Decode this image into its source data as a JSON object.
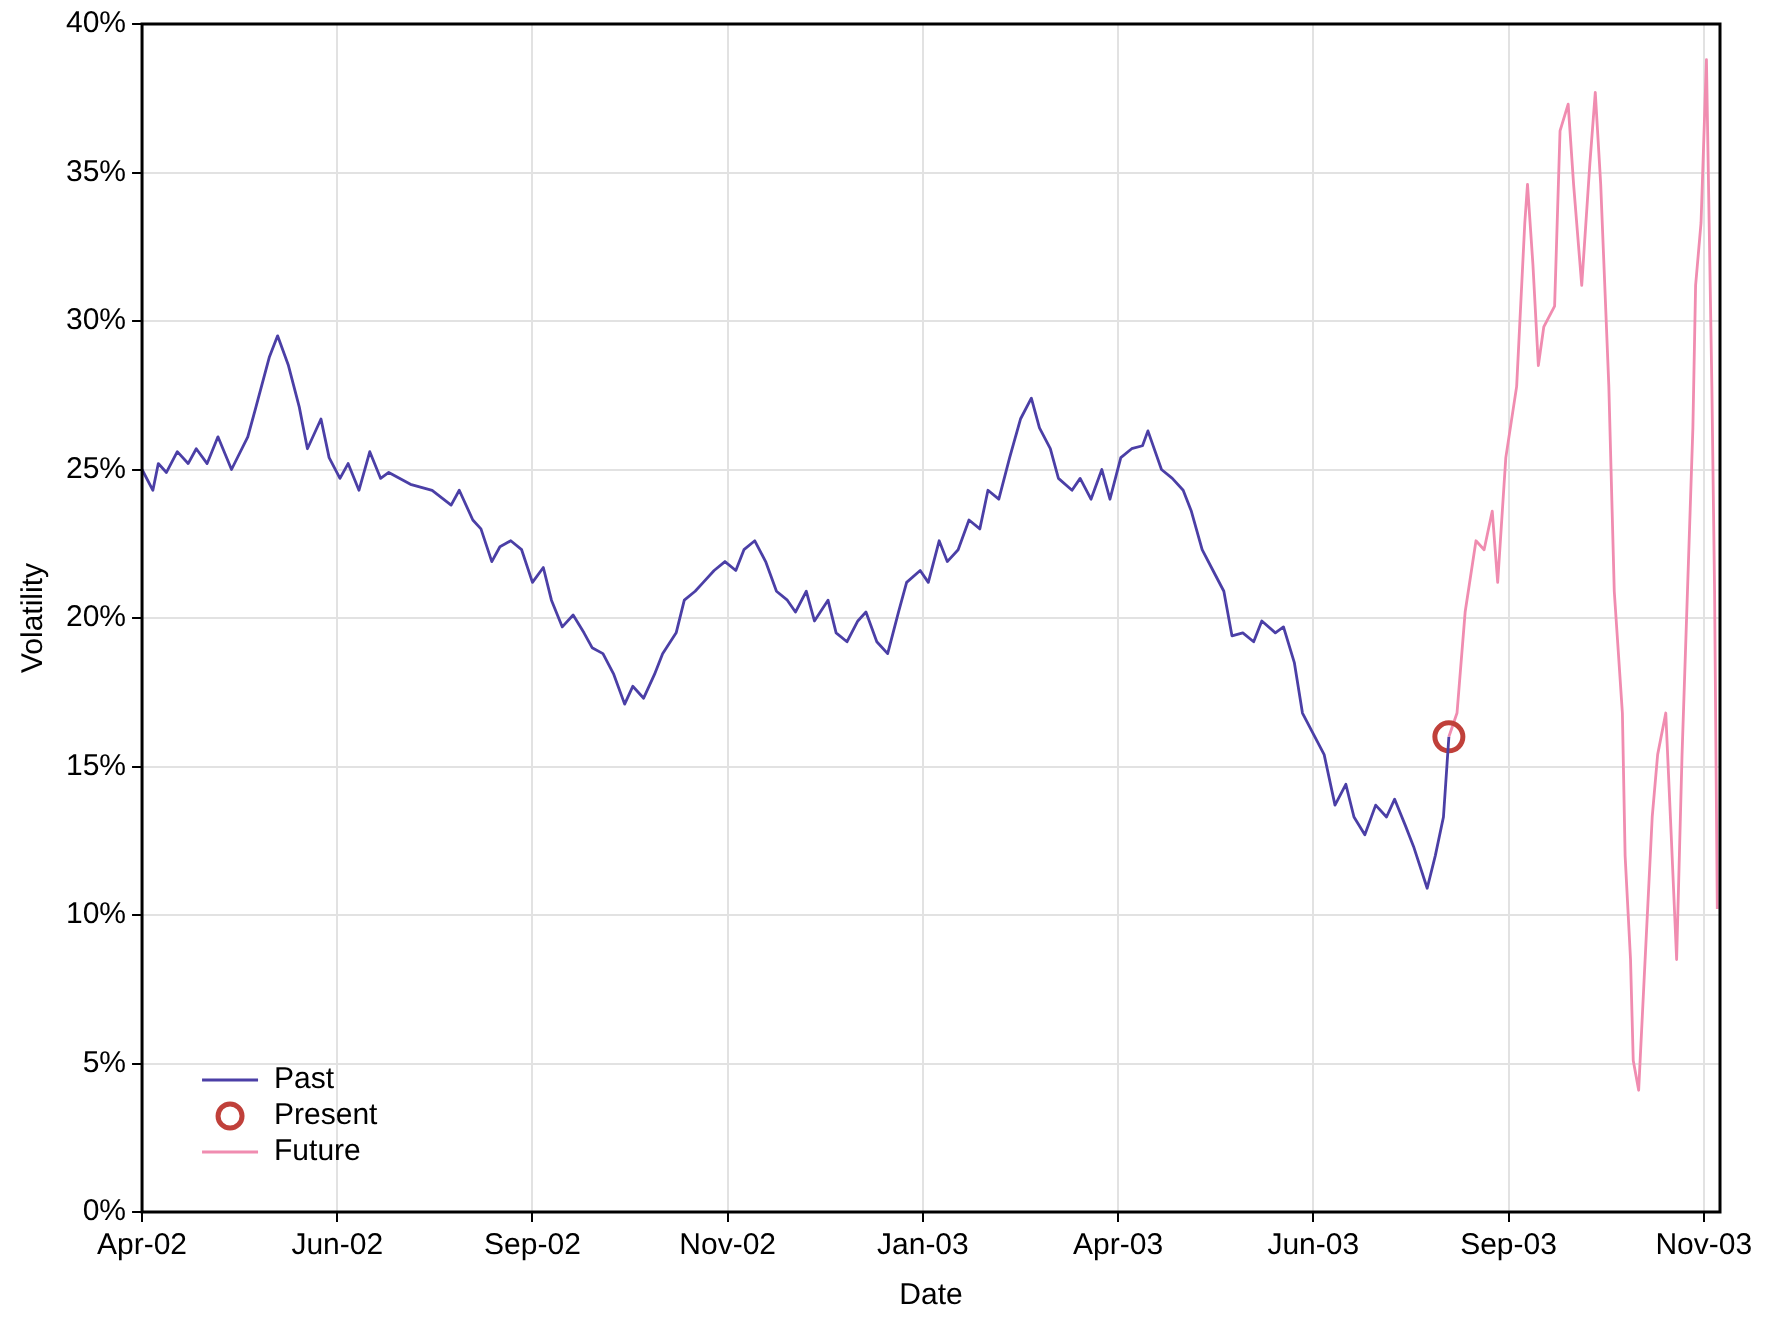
{
  "chart_data": {
    "type": "line",
    "xlabel": "Date",
    "ylabel": "Volatility",
    "xlim": [
      "2002-04-15",
      "2003-11-18"
    ],
    "xticks": [
      {
        "value": "2002-04-15",
        "label": "Apr-02"
      },
      {
        "value": "2002-06-26",
        "label": "Jun-02"
      },
      {
        "value": "2002-09-06",
        "label": "Sep-02"
      },
      {
        "value": "2002-11-17",
        "label": "Nov-02"
      },
      {
        "value": "2003-01-28",
        "label": "Jan-03"
      },
      {
        "value": "2003-04-10",
        "label": "Apr-03"
      },
      {
        "value": "2003-06-21",
        "label": "Jun-03"
      },
      {
        "value": "2003-09-01",
        "label": "Sep-03"
      },
      {
        "value": "2003-11-12",
        "label": "Nov-03"
      }
    ],
    "ylim": [
      0,
      40
    ],
    "yticks": [
      {
        "value": 0,
        "label": "0%"
      },
      {
        "value": 5,
        "label": "5%"
      },
      {
        "value": 10,
        "label": "10%"
      },
      {
        "value": 15,
        "label": "15%"
      },
      {
        "value": 20,
        "label": "20%"
      },
      {
        "value": 25,
        "label": "25%"
      },
      {
        "value": 30,
        "label": "30%"
      },
      {
        "value": 35,
        "label": "35%"
      },
      {
        "value": 40,
        "label": "40%"
      }
    ],
    "grid": true,
    "legend": "bottom left",
    "series": [
      {
        "name": "Past",
        "color": "#4b3fa6",
        "x": [
          "2002-04-15",
          "2002-04-19",
          "2002-04-21",
          "2002-04-24",
          "2002-04-28",
          "2002-05-02",
          "2002-05-05",
          "2002-05-09",
          "2002-05-13",
          "2002-05-18",
          "2002-05-24",
          "2002-05-27",
          "2002-06-01",
          "2002-06-04",
          "2002-06-08",
          "2002-06-12",
          "2002-06-15",
          "2002-06-20",
          "2002-06-23",
          "2002-06-27",
          "2002-06-30",
          "2002-07-04",
          "2002-07-08",
          "2002-07-12",
          "2002-07-15",
          "2002-07-23",
          "2002-07-31",
          "2002-08-07",
          "2002-08-10",
          "2002-08-15",
          "2002-08-18",
          "2002-08-22",
          "2002-08-25",
          "2002-08-29",
          "2002-09-02",
          "2002-09-06",
          "2002-09-10",
          "2002-09-13",
          "2002-09-17",
          "2002-09-21",
          "2002-09-25",
          "2002-09-28",
          "2002-10-02",
          "2002-10-06",
          "2002-10-10",
          "2002-10-13",
          "2002-10-17",
          "2002-10-21",
          "2002-10-24",
          "2002-10-29",
          "2002-11-01",
          "2002-11-05",
          "2002-11-08",
          "2002-11-12",
          "2002-11-16",
          "2002-11-20",
          "2002-11-23",
          "2002-11-27",
          "2002-12-01",
          "2002-12-05",
          "2002-12-09",
          "2002-12-12",
          "2002-12-16",
          "2002-12-19",
          "2002-12-24",
          "2002-12-27",
          "2002-12-31",
          "2003-01-04",
          "2003-01-07",
          "2003-01-11",
          "2003-01-15",
          "2003-01-19",
          "2003-01-22",
          "2003-01-27",
          "2003-01-30",
          "2003-02-03",
          "2003-02-06",
          "2003-02-10",
          "2003-02-14",
          "2003-02-18",
          "2003-02-21",
          "2003-02-25",
          "2003-03-01",
          "2003-03-05",
          "2003-03-09",
          "2003-03-12",
          "2003-03-16",
          "2003-03-19",
          "2003-03-24",
          "2003-03-27",
          "2003-03-31",
          "2003-04-04",
          "2003-04-07",
          "2003-04-11",
          "2003-04-15",
          "2003-04-19",
          "2003-04-21",
          "2003-04-26",
          "2003-04-30",
          "2003-05-04",
          "2003-05-07",
          "2003-05-11",
          "2003-05-15",
          "2003-05-19",
          "2003-05-22",
          "2003-05-26",
          "2003-05-30",
          "2003-06-02",
          "2003-06-07",
          "2003-06-10",
          "2003-06-14",
          "2003-06-17",
          "2003-06-21",
          "2003-06-25",
          "2003-06-29",
          "2003-07-03",
          "2003-07-06",
          "2003-07-10",
          "2003-07-14",
          "2003-07-18",
          "2003-07-21",
          "2003-07-25",
          "2003-07-28",
          "2003-08-02",
          "2003-08-05",
          "2003-08-08",
          "2003-08-10"
        ],
        "values": [
          25.0,
          24.3,
          25.2,
          24.9,
          25.6,
          25.2,
          25.7,
          25.2,
          26.1,
          25.0,
          26.1,
          27.1,
          28.8,
          29.5,
          28.5,
          27.1,
          25.7,
          26.7,
          25.4,
          24.7,
          25.2,
          24.3,
          25.6,
          24.7,
          24.9,
          24.5,
          24.3,
          23.8,
          24.3,
          23.3,
          23.0,
          21.9,
          22.4,
          22.6,
          22.3,
          21.2,
          21.7,
          20.6,
          19.7,
          20.1,
          19.5,
          19.0,
          18.8,
          18.1,
          17.1,
          17.7,
          17.3,
          18.1,
          18.8,
          19.5,
          20.6,
          20.9,
          21.2,
          21.6,
          21.9,
          21.6,
          22.3,
          22.6,
          21.9,
          20.9,
          20.6,
          20.2,
          20.9,
          19.9,
          20.6,
          19.5,
          19.2,
          19.9,
          20.2,
          19.2,
          18.8,
          20.2,
          21.2,
          21.6,
          21.2,
          22.6,
          21.9,
          22.3,
          23.3,
          23.0,
          24.3,
          24.0,
          25.4,
          26.7,
          27.4,
          26.4,
          25.7,
          24.7,
          24.3,
          24.7,
          24.0,
          25.0,
          24.0,
          25.4,
          25.7,
          25.8,
          26.3,
          25.0,
          24.7,
          24.3,
          23.6,
          22.3,
          21.6,
          20.9,
          19.4,
          19.5,
          19.2,
          19.9,
          19.5,
          19.7,
          18.5,
          16.8,
          16.1,
          15.4,
          13.7,
          14.4,
          13.3,
          12.7,
          13.7,
          13.3,
          13.9,
          13.0,
          12.3,
          10.9,
          12.0,
          13.3,
          16.0
        ]
      },
      {
        "name": "Present",
        "type": "scatter",
        "marker": "circle",
        "color": "#c0403a",
        "x": [
          "2003-08-10"
        ],
        "values": [
          16.0
        ]
      },
      {
        "name": "Future",
        "color": "#f08cb0",
        "x": [
          "2003-08-10",
          "2003-08-13",
          "2003-08-16",
          "2003-08-20",
          "2003-08-23",
          "2003-08-26",
          "2003-08-28",
          "2003-08-31",
          "2003-09-04",
          "2003-09-07",
          "2003-09-08",
          "2003-09-10",
          "2003-09-12",
          "2003-09-14",
          "2003-09-18",
          "2003-09-20",
          "2003-09-23",
          "2003-09-25",
          "2003-09-28",
          "2003-10-01",
          "2003-10-03",
          "2003-10-05",
          "2003-10-08",
          "2003-10-10",
          "2003-10-13",
          "2003-10-14",
          "2003-10-16",
          "2003-10-17",
          "2003-10-19",
          "2003-10-21",
          "2003-10-24",
          "2003-10-26",
          "2003-10-29",
          "2003-10-31",
          "2003-11-02",
          "2003-11-04",
          "2003-11-06",
          "2003-11-08",
          "2003-11-09",
          "2003-11-11",
          "2003-11-13",
          "2003-11-14",
          "2003-11-15",
          "2003-11-16",
          "2003-11-17"
        ],
        "values": [
          16.0,
          16.8,
          20.2,
          22.6,
          22.3,
          23.6,
          21.2,
          25.4,
          27.8,
          33.3,
          34.6,
          31.9,
          28.5,
          29.8,
          30.5,
          36.4,
          37.3,
          34.6,
          31.2,
          35.3,
          37.7,
          34.6,
          27.8,
          20.9,
          16.8,
          12.0,
          8.5,
          5.1,
          4.1,
          7.8,
          13.3,
          15.4,
          16.8,
          12.7,
          8.5,
          15.4,
          20.9,
          26.4,
          31.2,
          33.3,
          38.8,
          33.3,
          27.8,
          20.9,
          10.2
        ]
      }
    ]
  }
}
